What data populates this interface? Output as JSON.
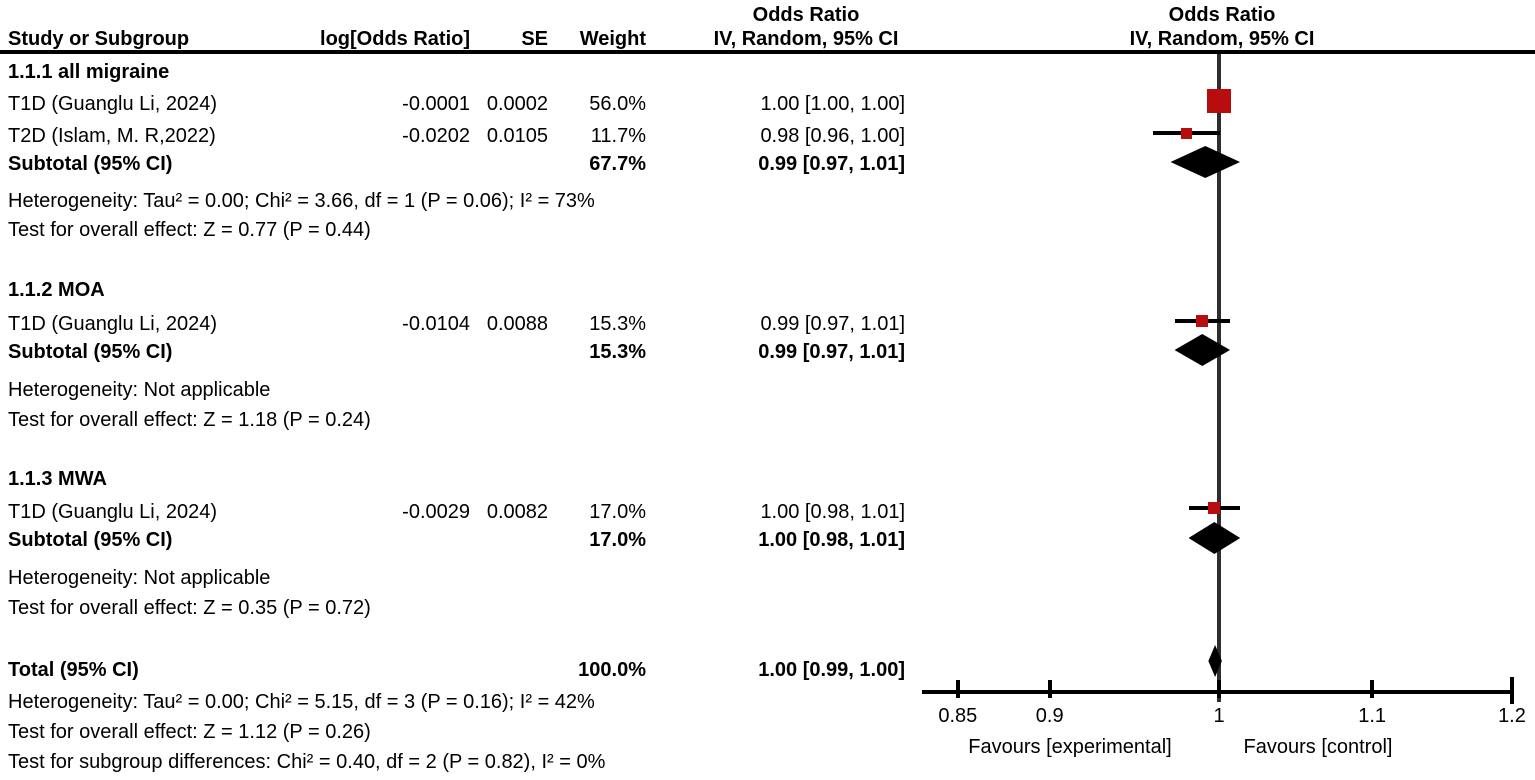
{
  "header": {
    "study": "Study or Subgroup",
    "log_or": "log[Odds Ratio]",
    "se": "SE",
    "weight": "Weight",
    "or_line1_left": "Odds Ratio",
    "ci_line2_left": "IV, Random, 95% CI",
    "or_line1_right": "Odds Ratio",
    "ci_line2_right": "IV, Random, 95% CI"
  },
  "chart_data": {
    "type": "forest",
    "effect_measure": "Odds Ratio",
    "method": "IV, Random, 95% CI",
    "scale": "log",
    "groups": [
      {
        "label": "1.1.1 all migraine",
        "studies": [
          {
            "name": "T1D (Guanglu Li, 2024)",
            "log_or": "-0.0001",
            "se": "0.0002",
            "weight": "56.0%",
            "ci_text": "1.00 [1.00, 1.00]",
            "plot": {
              "or": 0.9999,
              "lo": 0.9995,
              "hi": 1.0003,
              "size": 24
            }
          },
          {
            "name": "T2D (Islam, M. R,2022)",
            "log_or": "-0.0202",
            "se": "0.0105",
            "weight": "11.7%",
            "ci_text": "0.98 [0.96, 1.00]",
            "plot": {
              "or": 0.98,
              "lo": 0.96,
              "hi": 1.0004,
              "size": 11
            }
          }
        ],
        "subtotal": {
          "label": "Subtotal (95% CI)",
          "weight": "67.7%",
          "ci_text": "0.99 [0.97, 1.01]",
          "plot": {
            "lo": 0.9703,
            "hi": 1.0132
          }
        },
        "heterogeneity": "Heterogeneity: Tau² = 0.00; Chi² = 3.66, df = 1 (P = 0.06); I² = 73%",
        "overall_effect": "Test for overall effect: Z = 0.77 (P = 0.44)"
      },
      {
        "label": "1.1.2 MOA",
        "studies": [
          {
            "name": "T1D (Guanglu Li, 2024)",
            "log_or": "-0.0104",
            "se": "0.0088",
            "weight": "15.3%",
            "ci_text": "0.99 [0.97, 1.01]",
            "plot": {
              "or": 0.9897,
              "lo": 0.9727,
              "hi": 1.0069,
              "size": 12
            }
          }
        ],
        "subtotal": {
          "label": "Subtotal (95% CI)",
          "weight": "15.3%",
          "ci_text": "0.99 [0.97, 1.01]",
          "plot": {
            "lo": 0.9727,
            "hi": 1.0069
          }
        },
        "heterogeneity": "Heterogeneity: Not applicable",
        "overall_effect": "Test for overall effect: Z = 1.18 (P = 0.24)"
      },
      {
        "label": "1.1.3 MWA",
        "studies": [
          {
            "name": "T1D (Guanglu Li, 2024)",
            "log_or": "-0.0029",
            "se": "0.0082",
            "weight": "17.0%",
            "ci_text": "1.00 [0.98, 1.01]",
            "plot": {
              "or": 0.9971,
              "lo": 0.9812,
              "hi": 1.0133,
              "size": 12
            }
          }
        ],
        "subtotal": {
          "label": "Subtotal (95% CI)",
          "weight": "17.0%",
          "ci_text": "1.00 [0.98, 1.01]",
          "plot": {
            "lo": 0.9812,
            "hi": 1.0133
          }
        },
        "heterogeneity": "Heterogeneity: Not applicable",
        "overall_effect": "Test for overall effect: Z = 0.35 (P = 0.72)"
      }
    ],
    "total": {
      "label": "Total (95% CI)",
      "weight": "100.0%",
      "ci_text": "1.00 [0.99, 1.00]",
      "plot": {
        "lo": 0.9934,
        "hi": 1.0018
      }
    },
    "total_heterogeneity": "Heterogeneity: Tau² = 0.00; Chi² = 5.15, df = 3 (P = 0.16); I² = 42%",
    "total_overall_effect": "Test for overall effect: Z = 1.12 (P = 0.26)",
    "subgroup_differences": "Test for subgroup differences: Chi² = 0.40, df = 2 (P = 0.82), I² = 0%",
    "axis": {
      "ticks": [
        0.85,
        0.9,
        1,
        1.1,
        1.2
      ],
      "tick_labels": [
        "0.85",
        "0.9",
        "1",
        "1.1",
        "1.2"
      ],
      "favours_left": "Favours [experimental]",
      "favours_right": "Favours [control]"
    }
  },
  "colors": {
    "marker_red": "#b80d0f",
    "diamond_black": "#000000",
    "line_black": "#000000"
  }
}
